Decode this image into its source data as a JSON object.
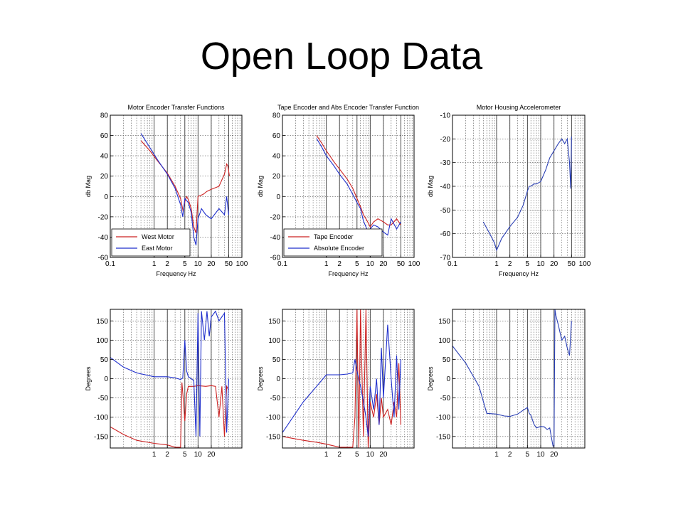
{
  "slide": {
    "title": "Open Loop Data"
  },
  "colors": {
    "west": "#cc2222",
    "east": "#1f2fcc",
    "tape": "#cc2222",
    "abs": "#1f2fcc",
    "accel": "#2a3fb4"
  },
  "chart_data": [
    {
      "type": "line",
      "title": "Motor Encoder Transfer Functions",
      "xlabel": "Frequency Hz",
      "ylabel": "db Mag",
      "xscale": "log",
      "xlim": [
        0.1,
        100
      ],
      "ylim": [
        -60,
        80
      ],
      "xticks": [
        0.1,
        1,
        2,
        5,
        10,
        20,
        50,
        100
      ],
      "xticklabels": [
        "0.1",
        "1",
        "2",
        "5",
        "10",
        "20",
        "50",
        "100"
      ],
      "yticks": [
        80,
        60,
        40,
        20,
        0,
        -20,
        -40,
        -60
      ],
      "yticklabels": [
        "80",
        "60",
        "40",
        "20",
        "0",
        "-20",
        "-40",
        "-60"
      ],
      "legend": "bottom-left",
      "series": [
        {
          "name": "West Motor",
          "color": "#cc2222",
          "x": [
            0.5,
            0.8,
            1.2,
            2,
            3,
            4,
            4.6,
            5,
            5.5,
            6,
            7,
            8,
            9,
            10,
            13,
            16,
            20,
            30,
            40,
            45,
            48,
            52
          ],
          "y": [
            55,
            45,
            35,
            23,
            10,
            -2,
            -15,
            -5,
            0,
            -3,
            -12,
            -30,
            -36,
            0,
            2,
            5,
            7,
            10,
            22,
            32,
            30,
            20
          ]
        },
        {
          "name": "East Motor",
          "color": "#1f2fcc",
          "x": [
            0.5,
            0.8,
            1.2,
            2,
            3,
            4,
            4.5,
            5,
            6,
            7,
            8,
            9,
            10,
            12,
            15,
            20,
            30,
            40,
            45,
            50
          ],
          "y": [
            62,
            48,
            36,
            22,
            8,
            -8,
            -20,
            -2,
            -6,
            -16,
            -40,
            -48,
            -22,
            -12,
            -18,
            -22,
            -12,
            -18,
            0,
            -18
          ]
        }
      ]
    },
    {
      "type": "line",
      "title": "Tape Encoder and Abs Encoder Transfer Function",
      "xlabel": "Frequency Hz",
      "ylabel": "db Mag",
      "xscale": "log",
      "xlim": [
        0.1,
        100
      ],
      "ylim": [
        -60,
        80
      ],
      "xticks": [
        0.1,
        1,
        2,
        5,
        10,
        20,
        50,
        100
      ],
      "xticklabels": [
        "0.1",
        "1",
        "2",
        "5",
        "10",
        "20",
        "50",
        "100"
      ],
      "yticks": [
        80,
        60,
        40,
        20,
        0,
        -20,
        -40,
        -60
      ],
      "yticklabels": [
        "80",
        "60",
        "40",
        "20",
        "0",
        "-20",
        "-40",
        "-60"
      ],
      "legend": "bottom-left",
      "series": [
        {
          "name": "Tape Encoder",
          "color": "#cc2222",
          "x": [
            0.6,
            0.8,
            1,
            1.5,
            2,
            3,
            4,
            5,
            6,
            7,
            8,
            9,
            10,
            12,
            15,
            20,
            25,
            30,
            40,
            50
          ],
          "y": [
            60,
            52,
            45,
            34,
            27,
            17,
            8,
            -2,
            -10,
            -18,
            -22,
            -26,
            -30,
            -25,
            -22,
            -25,
            -28,
            -28,
            -22,
            -28
          ]
        },
        {
          "name": "Absolute Encoder",
          "color": "#1f2fcc",
          "x": [
            0.6,
            0.8,
            1,
            1.5,
            2,
            3,
            4,
            5,
            6,
            7,
            8,
            9,
            10,
            12,
            15,
            20,
            25,
            30,
            40,
            50
          ],
          "y": [
            57,
            48,
            40,
            30,
            22,
            12,
            2,
            -6,
            -12,
            -24,
            -30,
            -36,
            -32,
            -28,
            -30,
            -35,
            -38,
            -22,
            -32,
            -25
          ]
        }
      ]
    },
    {
      "type": "line",
      "title": "Motor Housing Accelerometer",
      "xlabel": "Frequency Hz",
      "ylabel": "db Mag",
      "xscale": "log",
      "xlim": [
        0.1,
        100
      ],
      "ylim": [
        -70,
        -10
      ],
      "xticks": [
        0.1,
        1,
        2,
        5,
        10,
        20,
        50,
        100
      ],
      "xticklabels": [
        "0.1",
        "1",
        "2",
        "5",
        "10",
        "20",
        "50",
        "100"
      ],
      "yticks": [
        -10,
        -20,
        -30,
        -40,
        -50,
        -60,
        -70
      ],
      "yticklabels": [
        "-10",
        "-20",
        "-30",
        "-40",
        "-50",
        "-60",
        "-70"
      ],
      "legend": "none",
      "series": [
        {
          "name": "",
          "color": "#2a3fb4",
          "x": [
            0.5,
            0.7,
            0.9,
            1,
            1.3,
            2,
            3,
            4,
            5,
            5.5,
            6,
            7,
            8,
            10,
            13,
            16,
            20,
            25,
            30,
            35,
            40,
            45,
            48,
            50
          ],
          "y": [
            -55,
            -60,
            -64,
            -67,
            -62,
            -57,
            -53,
            -48,
            -42,
            -40,
            -40,
            -39,
            -39,
            -38,
            -33,
            -28,
            -25,
            -22,
            -20,
            -22,
            -20,
            -30,
            -41,
            -19
          ]
        }
      ]
    },
    {
      "type": "line",
      "title": "",
      "xlabel": "",
      "ylabel": "Degrees",
      "xscale": "log",
      "xlim": [
        0.1,
        100
      ],
      "ylim": [
        -180,
        180
      ],
      "xticks": [
        1,
        2,
        5,
        10,
        20
      ],
      "xticklabels": [
        "1",
        "2",
        "5",
        "10",
        "20"
      ],
      "yticks": [
        150,
        100,
        50,
        0,
        -50,
        -100,
        -150
      ],
      "yticklabels": [
        "150",
        "100",
        "50",
        "0",
        "-50",
        "-100",
        "-150"
      ],
      "legend": "none",
      "series": [
        {
          "name": "West Motor",
          "color": "#cc2222",
          "x": [
            0.1,
            0.2,
            0.4,
            1,
            2,
            3,
            4,
            4.3,
            4.6,
            5,
            5.5,
            6,
            7,
            8,
            10,
            15,
            20,
            25,
            30,
            35,
            40,
            45,
            50
          ],
          "y": [
            -125,
            -145,
            -160,
            -168,
            -172,
            -178,
            -178,
            -10,
            -50,
            -110,
            -40,
            -20,
            -20,
            -20,
            -18,
            -20,
            -18,
            -20,
            -100,
            -20,
            -150,
            -20,
            -30
          ]
        },
        {
          "name": "East Motor",
          "color": "#1f2fcc",
          "x": [
            0.1,
            0.2,
            0.4,
            1,
            2,
            3,
            4,
            4.5,
            5,
            5.5,
            6,
            7,
            8,
            9,
            10,
            11,
            12,
            14,
            16,
            18,
            20,
            25,
            30,
            40,
            45,
            50
          ],
          "y": [
            55,
            30,
            15,
            5,
            5,
            2,
            -2,
            2,
            100,
            20,
            5,
            0,
            -5,
            -150,
            170,
            -150,
            175,
            100,
            175,
            110,
            160,
            175,
            150,
            170,
            -140,
            0
          ]
        }
      ]
    },
    {
      "type": "line",
      "title": "",
      "xlabel": "",
      "ylabel": "Degrees",
      "xscale": "log",
      "xlim": [
        0.1,
        100
      ],
      "ylim": [
        -180,
        180
      ],
      "xticks": [
        1,
        2,
        5,
        10,
        20
      ],
      "xticklabels": [
        "1",
        "2",
        "5",
        "10",
        "20"
      ],
      "yticks": [
        150,
        100,
        50,
        0,
        -50,
        -100,
        -150
      ],
      "yticklabels": [
        "150",
        "100",
        "50",
        "0",
        "-50",
        "-100",
        "-150"
      ],
      "legend": "none",
      "series": [
        {
          "name": "Tape Encoder",
          "color": "#cc2222",
          "x": [
            0.1,
            0.3,
            0.6,
            1,
            2,
            3,
            4,
            4.5,
            5,
            5.5,
            6,
            7,
            8,
            9,
            10,
            12,
            14,
            16,
            18,
            20,
            25,
            30,
            35,
            40,
            45,
            50
          ],
          "y": [
            -150,
            -160,
            -165,
            -170,
            -178,
            -178,
            -178,
            -100,
            180,
            -180,
            180,
            -150,
            180,
            -180,
            -60,
            -100,
            -40,
            -120,
            -50,
            -100,
            -80,
            -120,
            -60,
            -100,
            40,
            -120
          ]
        },
        {
          "name": "Absolute Encoder",
          "color": "#1f2fcc",
          "x": [
            0.1,
            0.3,
            0.6,
            1,
            2,
            3,
            4,
            4.5,
            5,
            5.5,
            6,
            7,
            8,
            9,
            10,
            12,
            14,
            16,
            18,
            20,
            25,
            30,
            35,
            40,
            45,
            50
          ],
          "y": [
            -140,
            -60,
            -20,
            10,
            10,
            12,
            15,
            50,
            20,
            0,
            -20,
            -60,
            -100,
            -150,
            -20,
            -80,
            0,
            -120,
            80,
            -50,
            140,
            0,
            -100,
            60,
            -80,
            50
          ]
        }
      ]
    },
    {
      "type": "line",
      "title": "",
      "xlabel": "",
      "ylabel": "Degrees",
      "xscale": "log",
      "xlim": [
        0.1,
        100
      ],
      "ylim": [
        -180,
        180
      ],
      "xticks": [
        1,
        2,
        5,
        10,
        20
      ],
      "xticklabels": [
        "1",
        "2",
        "5",
        "10",
        "20"
      ],
      "yticks": [
        150,
        100,
        50,
        0,
        -50,
        -100,
        -150
      ],
      "yticklabels": [
        "150",
        "100",
        "50",
        "0",
        "-50",
        "-100",
        "-150"
      ],
      "legend": "none",
      "series": [
        {
          "name": "",
          "color": "#2a3fb4",
          "x": [
            0.1,
            0.2,
            0.4,
            0.6,
            1,
            1.5,
            2,
            3,
            4,
            5,
            5.5,
            6,
            7,
            8,
            10,
            12,
            14,
            16,
            18,
            19,
            20,
            21,
            22,
            25,
            30,
            35,
            40,
            45,
            50
          ],
          "y": [
            85,
            40,
            -20,
            -90,
            -92,
            -97,
            -98,
            -92,
            -82,
            -75,
            -90,
            -95,
            -118,
            -128,
            -124,
            -125,
            -132,
            -128,
            -160,
            -175,
            -175,
            180,
            165,
            140,
            100,
            110,
            80,
            60,
            150
          ]
        }
      ]
    }
  ]
}
